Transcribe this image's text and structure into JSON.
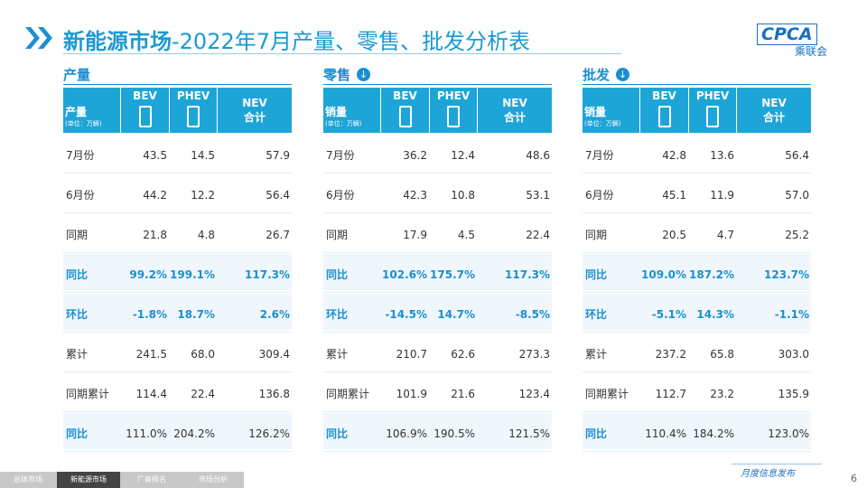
{
  "header": {
    "title_bold": "新能源市场",
    "title_rest": "-2022年7月产量、零售、批发分析表",
    "logo_text": "CPCA",
    "logo_sub": "乘联会"
  },
  "tables": [
    {
      "section": "产量",
      "corner": "产量",
      "unit": "(单位：万辆)",
      "columns": [
        "BEV",
        "PHEV",
        "NEV",
        "合计"
      ],
      "rows": [
        [
          "7月份",
          "43.5",
          "14.5",
          "57.9"
        ],
        [
          "6月份",
          "44.2",
          "12.2",
          "56.4"
        ],
        [
          "同期",
          "21.8",
          "4.8",
          "26.7"
        ],
        [
          "同比",
          "99.2%",
          "199.1%",
          "117.3%"
        ],
        [
          "环比",
          "-1.8%",
          "18.7%",
          "2.6%"
        ],
        [
          "累计",
          "241.5",
          "68.0",
          "309.4"
        ],
        [
          "同期累计",
          "114.4",
          "22.4",
          "136.8"
        ],
        [
          "同比",
          "111.0%",
          "204.2%",
          "126.2%"
        ]
      ]
    },
    {
      "section": "零售",
      "corner": "销量",
      "unit": "(单位：万辆)",
      "columns": [
        "BEV",
        "PHEV",
        "NEV",
        "合计"
      ],
      "rows": [
        [
          "7月份",
          "36.2",
          "12.4",
          "48.6"
        ],
        [
          "6月份",
          "42.3",
          "10.8",
          "53.1"
        ],
        [
          "同期",
          "17.9",
          "4.5",
          "22.4"
        ],
        [
          "同比",
          "102.6%",
          "175.7%",
          "117.3%"
        ],
        [
          "环比",
          "-14.5%",
          "14.7%",
          "-8.5%"
        ],
        [
          "累计",
          "210.7",
          "62.6",
          "273.3"
        ],
        [
          "同期累计",
          "101.9",
          "21.6",
          "123.4"
        ],
        [
          "同比",
          "106.9%",
          "190.5%",
          "121.5%"
        ]
      ]
    },
    {
      "section": "批发",
      "corner": "销量",
      "unit": "(单位：万辆)",
      "columns": [
        "BEV",
        "PHEV",
        "NEV",
        "合计"
      ],
      "rows": [
        [
          "7月份",
          "42.8",
          "13.6",
          "56.4"
        ],
        [
          "6月份",
          "45.1",
          "11.9",
          "57.0"
        ],
        [
          "同期",
          "20.5",
          "4.7",
          "25.2"
        ],
        [
          "同比",
          "109.0%",
          "187.2%",
          "123.7%"
        ],
        [
          "环比",
          "-5.1%",
          "14.3%",
          "-1.1%"
        ],
        [
          "累计",
          "237.2",
          "65.8",
          "303.0"
        ],
        [
          "同期累计",
          "112.7",
          "23.2",
          "135.9"
        ],
        [
          "同比",
          "110.4%",
          "184.2%",
          "123.0%"
        ]
      ]
    }
  ],
  "footer": {
    "tabs": [
      "总体市场",
      "新能源市场",
      "厂商排名",
      "市场分析"
    ],
    "note": "月度信息发布",
    "page": "6"
  }
}
